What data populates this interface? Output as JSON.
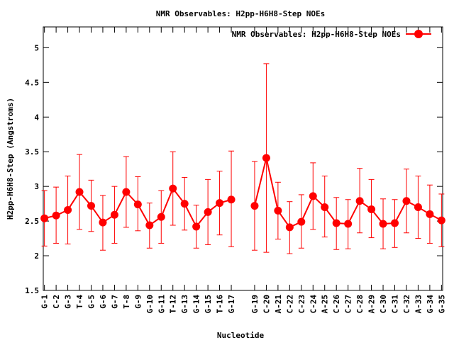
{
  "chart_data": {
    "type": "line",
    "title": "NMR Observables: H2pp-H6H8-Step NOEs",
    "xlabel": "Nucleotide",
    "ylabel": "H2pp-H6H8-Step (Angstroms)",
    "ylim": [
      1.5,
      5.3
    ],
    "yticks": [
      1.5,
      2,
      2.5,
      3,
      3.5,
      4,
      4.5,
      5
    ],
    "ytick_labels": [
      "1.5",
      "2",
      "2.5",
      "3",
      "3.5",
      "4",
      "4.5",
      "5"
    ],
    "grid": false,
    "legend_position": "top-right",
    "series_color": "#ff0000",
    "categories": [
      "G-1",
      "C-2",
      "G-3",
      "T-4",
      "G-5",
      "G-6",
      "G-7",
      "T-8",
      "G-9",
      "G-10",
      "G-11",
      "T-12",
      "G-13",
      "G-14",
      "G-15",
      "T-16",
      "G-17",
      "G-19",
      "C-20",
      "A-21",
      "C-22",
      "C-23",
      "C-24",
      "A-25",
      "C-26",
      "C-27",
      "C-28",
      "A-29",
      "C-30",
      "C-31",
      "C-32",
      "A-33",
      "G-34",
      "G-35"
    ],
    "x": [
      1,
      2,
      3,
      4,
      5,
      6,
      7,
      8,
      9,
      10,
      11,
      12,
      13,
      14,
      15,
      16,
      17,
      19,
      20,
      21,
      22,
      23,
      24,
      25,
      26,
      27,
      28,
      29,
      30,
      31,
      32,
      33,
      34,
      35
    ],
    "series": [
      {
        "name": "NMR Observables: H2pp-H6H8-Step NOEs",
        "values": [
          2.54,
          2.58,
          2.66,
          2.92,
          2.72,
          2.48,
          2.59,
          2.92,
          2.74,
          2.44,
          2.56,
          2.97,
          2.75,
          2.42,
          2.63,
          2.76,
          2.81,
          2.72,
          3.41,
          2.65,
          2.41,
          2.49,
          2.86,
          2.7,
          2.47,
          2.46,
          2.79,
          2.67,
          2.46,
          2.47,
          2.79,
          2.7,
          2.6,
          2.51
        ],
        "err_low": [
          2.14,
          2.18,
          2.17,
          2.38,
          2.35,
          2.08,
          2.18,
          2.41,
          2.36,
          2.11,
          2.18,
          2.44,
          2.37,
          2.11,
          2.16,
          2.3,
          2.13,
          2.08,
          2.05,
          2.24,
          2.03,
          2.11,
          2.38,
          2.27,
          2.09,
          2.1,
          2.33,
          2.26,
          2.1,
          2.12,
          2.33,
          2.25,
          2.18,
          2.13
        ],
        "err_high": [
          2.94,
          2.99,
          3.15,
          3.46,
          3.09,
          2.87,
          3.0,
          3.43,
          3.14,
          2.76,
          2.94,
          3.5,
          3.13,
          2.73,
          3.1,
          3.22,
          3.51,
          3.36,
          4.77,
          3.06,
          2.78,
          2.88,
          3.34,
          3.15,
          2.84,
          2.81,
          3.26,
          3.1,
          2.82,
          2.81,
          3.25,
          3.15,
          3.02,
          2.89
        ]
      }
    ]
  }
}
